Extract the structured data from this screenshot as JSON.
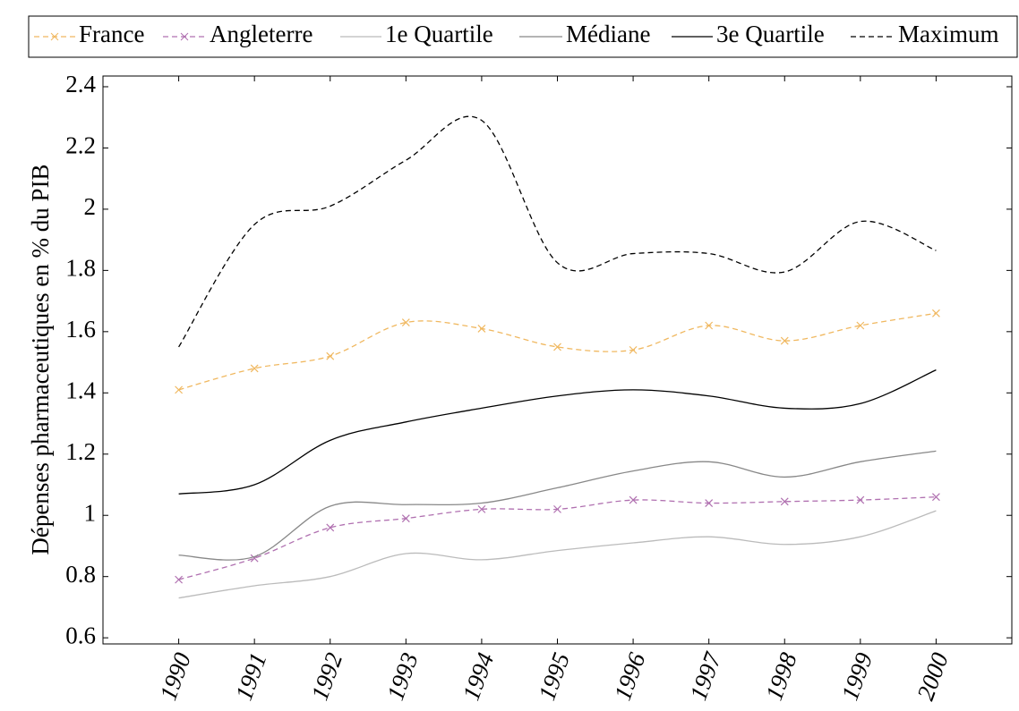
{
  "chart_data": {
    "type": "line",
    "y_label": "Dépenses pharmaceutiques en  % du PIB",
    "x": [
      1990,
      1991,
      1992,
      1993,
      1994,
      1995,
      1996,
      1997,
      1998,
      1999,
      2000
    ],
    "xlim": [
      1989,
      2001
    ],
    "xticks": [
      1990,
      1991,
      1992,
      1993,
      1994,
      1995,
      1996,
      1997,
      1998,
      1999,
      2000
    ],
    "ylim": [
      0.58,
      2.435
    ],
    "yticks": [
      0.6,
      0.8,
      1,
      1.2,
      1.4,
      1.6,
      1.8,
      2,
      2.2,
      2.4
    ],
    "legend": "top",
    "series": [
      {
        "name": "France",
        "color": "#f0b860",
        "style": "dashed",
        "marker": "x",
        "values": [
          1.41,
          1.48,
          1.52,
          1.63,
          1.61,
          1.55,
          1.54,
          1.62,
          1.57,
          1.62,
          1.66
        ]
      },
      {
        "name": "Angleterre",
        "color": "#b070b0",
        "style": "dashed",
        "marker": "x",
        "values": [
          0.79,
          0.86,
          0.96,
          0.99,
          1.02,
          1.02,
          1.05,
          1.04,
          1.045,
          1.05,
          1.06
        ]
      },
      {
        "name": "1e Quartile",
        "color": "#bbbbbb",
        "style": "solid",
        "values": [
          0.73,
          0.77,
          0.8,
          0.875,
          0.855,
          0.885,
          0.91,
          0.93,
          0.905,
          0.93,
          1.015
        ]
      },
      {
        "name": "Médiane",
        "color": "#888888",
        "style": "solid",
        "values": [
          0.87,
          0.865,
          1.03,
          1.035,
          1.04,
          1.09,
          1.145,
          1.175,
          1.125,
          1.175,
          1.21
        ]
      },
      {
        "name": "3e Quartile",
        "color": "#000000",
        "style": "solid",
        "values": [
          1.07,
          1.1,
          1.245,
          1.305,
          1.35,
          1.39,
          1.41,
          1.39,
          1.35,
          1.365,
          1.475
        ]
      },
      {
        "name": "Maximum",
        "color": "#000000",
        "style": "dashed",
        "values": [
          1.55,
          1.95,
          2.01,
          2.16,
          2.29,
          1.825,
          1.855,
          1.855,
          1.795,
          1.96,
          1.865
        ]
      }
    ]
  }
}
